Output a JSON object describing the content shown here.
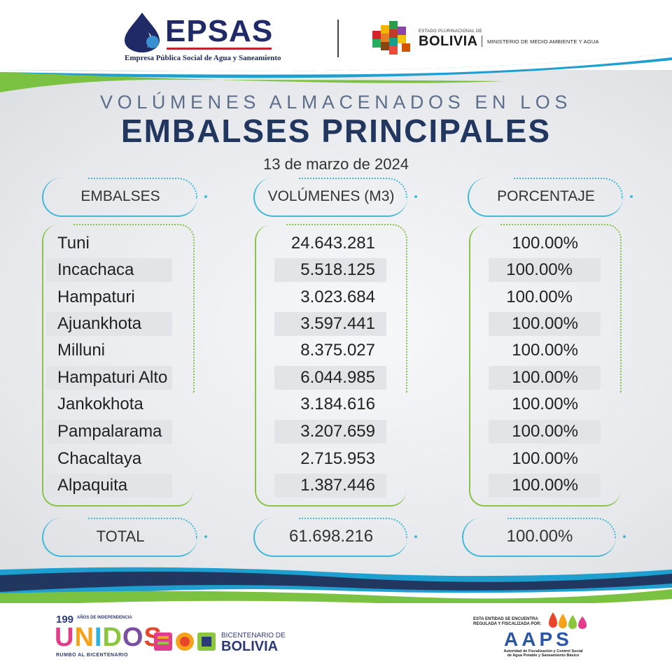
{
  "header": {
    "brand_name": "EPSAS",
    "brand_subtitle": "Empresa Pública Social de Agua y Saneamiento",
    "state_small": "ESTADO PLURINACIONAL DE",
    "state_name": "BOLIVIA",
    "ministry": "MINISTERIO DE MEDIO AMBIENTE Y AGUA"
  },
  "title": {
    "line1": "VOLÚMENES ALMACENADOS EN LOS",
    "line2": "EMBALSES PRINCIPALES",
    "date": "13 de marzo de 2024"
  },
  "table": {
    "headers": [
      "EMBALSES",
      "VOLÚMENES (M3)",
      "PORCENTAJE"
    ],
    "rows": [
      {
        "name": "Tuni",
        "volume": "24.643.281",
        "percent": "100.00%"
      },
      {
        "name": "Incachaca",
        "volume": "5.518.125",
        "percent": "100.00%"
      },
      {
        "name": "Hampaturi",
        "volume": "3.023.684",
        "percent": "100.00%"
      },
      {
        "name": "Ajuankhota",
        "volume": "3.597.441",
        "percent": "100.00%"
      },
      {
        "name": "Milluni",
        "volume": "8.375.027",
        "percent": "100.00%"
      },
      {
        "name": "Hampaturi Alto",
        "volume": "6.044.985",
        "percent": "100.00%"
      },
      {
        "name": "Jankokhota",
        "volume": "3.184.616",
        "percent": "100.00%"
      },
      {
        "name": "Pampalarama",
        "volume": "3.207.659",
        "percent": "100.00%"
      },
      {
        "name": "Chacaltaya",
        "volume": "2.715.953",
        "percent": "100.00%"
      },
      {
        "name": "Alpaquita",
        "volume": "1.387.446",
        "percent": "100.00%"
      }
    ],
    "total": {
      "label": "TOTAL",
      "volume": "61.698.216",
      "percent": "100.00%"
    }
  },
  "footer": {
    "years": "199",
    "years_text": "AÑOS DE INDEPENDENCIA",
    "unidos_letters": [
      "U",
      "N",
      "I",
      "D",
      "O",
      "S"
    ],
    "unidos_tagline": "RUMBO AL BICENTENARIO",
    "bicentenario_small": "BICENTENARIO DE",
    "bicentenario_big": "BOLIVIA",
    "aaps_line1": "ESTA ENTIDAD SE ENCUENTRA",
    "aaps_line2": "REGULADA Y FISCALIZADA POR:",
    "aaps_name": "AAPS",
    "aaps_sub1": "Autoridad de Fiscalización y Control Social",
    "aaps_sub2": "de Agua Potable y Saneamiento Básico"
  },
  "colors": {
    "navy": "#21375f",
    "cyan": "#41b8d8",
    "green": "#8bc34a",
    "brand_red": "#c22030"
  }
}
